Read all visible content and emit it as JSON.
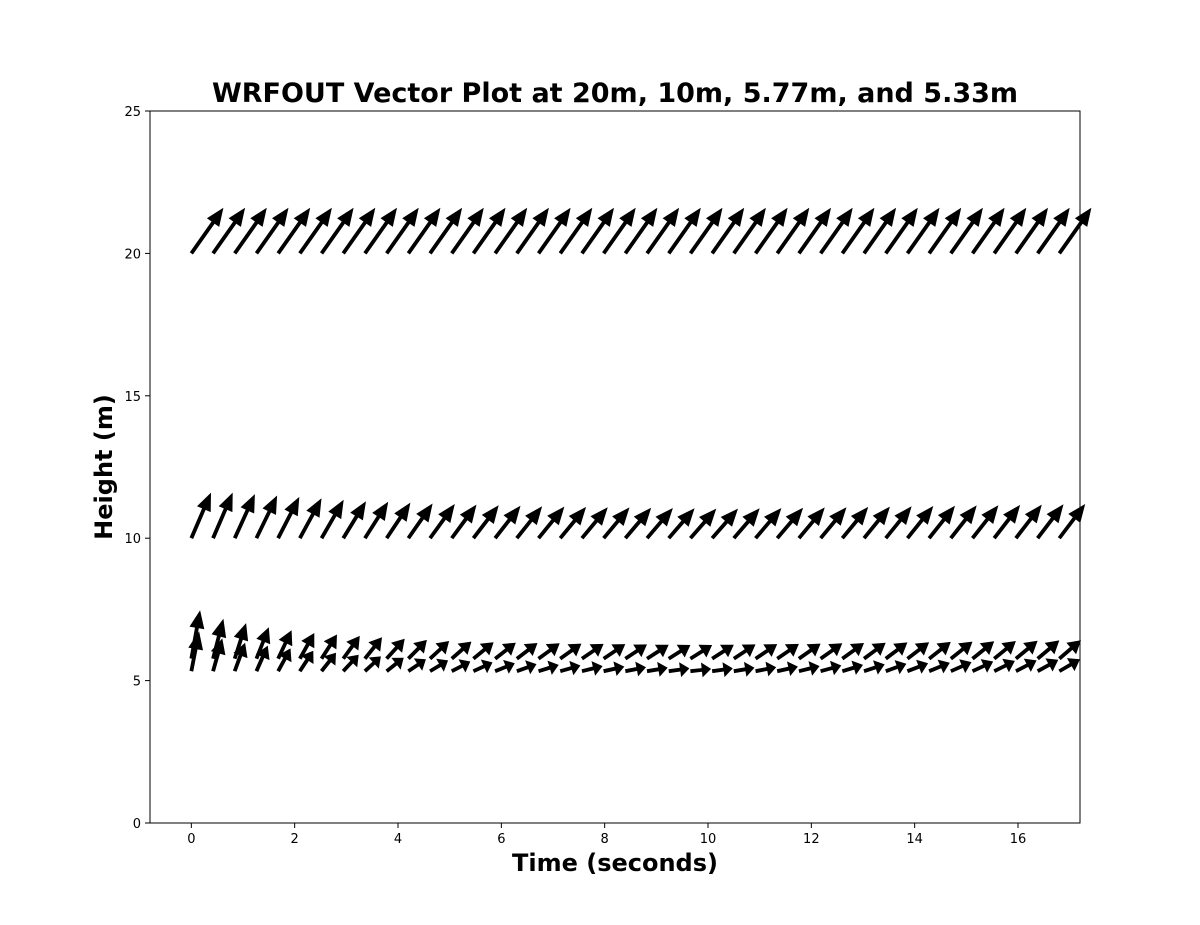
{
  "chart_data": {
    "type": "quiver",
    "title": "WRFOUT Vector Plot at 20m, 10m, 5.77m, and 5.33m",
    "xlabel": "Time (seconds)",
    "ylabel": "Height (m)",
    "xlim": [
      -0.8,
      17.2
    ],
    "ylim": [
      0,
      25
    ],
    "xticks": [
      "0",
      "2",
      "4",
      "6",
      "8",
      "10",
      "12",
      "14",
      "16"
    ],
    "yticks": [
      "0",
      "5",
      "10",
      "15",
      "20",
      "25"
    ],
    "grid": false,
    "legend": "none",
    "arrow_color": "#000000",
    "time_start": 0,
    "time_step": 0.42,
    "series": [
      {
        "height": 20,
        "u": [
          0.62,
          0.62,
          0.62,
          0.62,
          0.62,
          0.62,
          0.62,
          0.62,
          0.62,
          0.62,
          0.62,
          0.62,
          0.62,
          0.62,
          0.62,
          0.62,
          0.62,
          0.62,
          0.62,
          0.62,
          0.62,
          0.62,
          0.62,
          0.62,
          0.62,
          0.62,
          0.62,
          0.62,
          0.62,
          0.62,
          0.62,
          0.62,
          0.62,
          0.62,
          0.62,
          0.62,
          0.62,
          0.62,
          0.62,
          0.62,
          0.62
        ],
        "v": [
          1.6,
          1.6,
          1.6,
          1.6,
          1.6,
          1.6,
          1.6,
          1.6,
          1.6,
          1.6,
          1.6,
          1.6,
          1.6,
          1.6,
          1.6,
          1.6,
          1.6,
          1.6,
          1.6,
          1.6,
          1.6,
          1.6,
          1.6,
          1.6,
          1.6,
          1.6,
          1.6,
          1.6,
          1.6,
          1.6,
          1.6,
          1.6,
          1.6,
          1.6,
          1.6,
          1.6,
          1.6,
          1.6,
          1.6,
          1.6,
          1.6
        ]
      },
      {
        "height": 10,
        "u": [
          0.38,
          0.38,
          0.39,
          0.4,
          0.41,
          0.42,
          0.43,
          0.44,
          0.45,
          0.46,
          0.47,
          0.48,
          0.48,
          0.49,
          0.49,
          0.49,
          0.5,
          0.5,
          0.5,
          0.5,
          0.5,
          0.5,
          0.5,
          0.5,
          0.5,
          0.5,
          0.5,
          0.5,
          0.5,
          0.5,
          0.5,
          0.5,
          0.5,
          0.5,
          0.5,
          0.5,
          0.5,
          0.5,
          0.5,
          0.5,
          0.5
        ],
        "v": [
          1.6,
          1.6,
          1.55,
          1.5,
          1.45,
          1.4,
          1.35,
          1.3,
          1.28,
          1.25,
          1.22,
          1.2,
          1.18,
          1.16,
          1.14,
          1.12,
          1.11,
          1.1,
          1.09,
          1.08,
          1.07,
          1.06,
          1.05,
          1.04,
          1.04,
          1.05,
          1.06,
          1.07,
          1.08,
          1.09,
          1.1,
          1.11,
          1.12,
          1.13,
          1.14,
          1.15,
          1.16,
          1.17,
          1.18,
          1.19,
          1.2
        ]
      },
      {
        "height": 5.77,
        "u": [
          0.17,
          0.2,
          0.22,
          0.24,
          0.26,
          0.28,
          0.3,
          0.32,
          0.33,
          0.35,
          0.36,
          0.37,
          0.38,
          0.39,
          0.4,
          0.4,
          0.41,
          0.41,
          0.42,
          0.42,
          0.42,
          0.42,
          0.42,
          0.42,
          0.42,
          0.42,
          0.42,
          0.42,
          0.42,
          0.42,
          0.42,
          0.42,
          0.42,
          0.42,
          0.42,
          0.42,
          0.42,
          0.42,
          0.42,
          0.42,
          0.42
        ],
        "v": [
          1.7,
          1.4,
          1.25,
          1.1,
          1.0,
          0.9,
          0.85,
          0.8,
          0.75,
          0.7,
          0.66,
          0.62,
          0.6,
          0.58,
          0.56,
          0.55,
          0.54,
          0.53,
          0.52,
          0.51,
          0.5,
          0.49,
          0.48,
          0.48,
          0.49,
          0.5,
          0.51,
          0.52,
          0.53,
          0.54,
          0.55,
          0.56,
          0.57,
          0.58,
          0.59,
          0.6,
          0.61,
          0.62,
          0.63,
          0.64,
          0.65
        ]
      },
      {
        "height": 5.33,
        "u": [
          0.15,
          0.18,
          0.2,
          0.22,
          0.24,
          0.26,
          0.28,
          0.3,
          0.31,
          0.33,
          0.34,
          0.35,
          0.36,
          0.37,
          0.38,
          0.38,
          0.39,
          0.39,
          0.4,
          0.4,
          0.4,
          0.4,
          0.4,
          0.4,
          0.4,
          0.4,
          0.4,
          0.4,
          0.4,
          0.4,
          0.4,
          0.4,
          0.4,
          0.4,
          0.4,
          0.4,
          0.4,
          0.4,
          0.4,
          0.4,
          0.4
        ],
        "v": [
          1.4,
          1.15,
          1.0,
          0.9,
          0.8,
          0.72,
          0.65,
          0.58,
          0.52,
          0.47,
          0.42,
          0.38,
          0.34,
          0.31,
          0.28,
          0.25,
          0.22,
          0.2,
          0.18,
          0.16,
          0.14,
          0.12,
          0.1,
          0.08,
          0.1,
          0.12,
          0.14,
          0.16,
          0.18,
          0.2,
          0.22,
          0.24,
          0.26,
          0.28,
          0.3,
          0.32,
          0.34,
          0.36,
          0.38,
          0.4,
          0.42
        ]
      }
    ]
  }
}
